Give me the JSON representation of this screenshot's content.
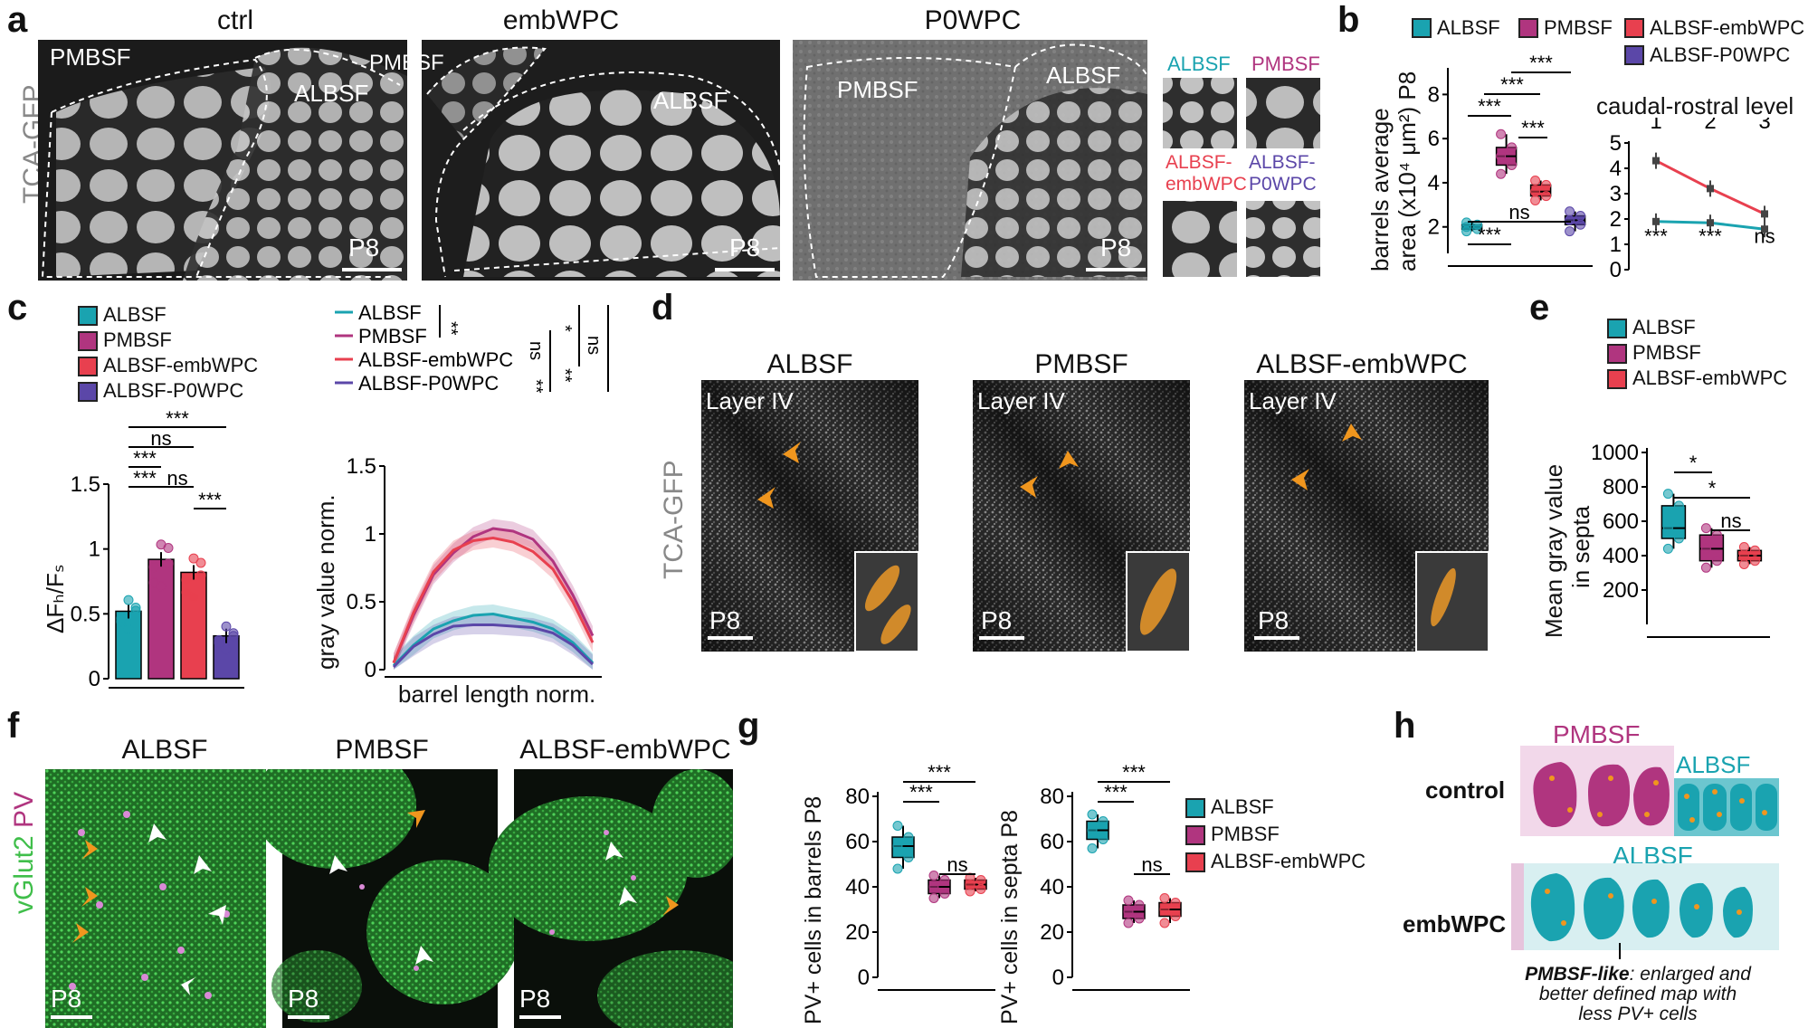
{
  "colors": {
    "albsf": "#1aa3b0",
    "pmbsf": "#b0357f",
    "embwpc": "#e8404f",
    "p0wpc": "#5b47a8",
    "green": "#3fbe4a",
    "orange": "#f0961e",
    "pink": "#e6c4dc"
  },
  "panel_letters": {
    "a": "a",
    "b": "b",
    "c": "c",
    "d": "d",
    "e": "e",
    "f": "f",
    "g": "g",
    "h": "h"
  },
  "panel_a": {
    "ylabel": "TCA-GFP",
    "titles": [
      "ctrl",
      "embWPC",
      "P0WPC"
    ],
    "region_pmbsf": "PMBSF",
    "region_albsf": "ALBSF",
    "age": "P8",
    "insets": [
      "ALBSF",
      "PMBSF",
      "ALBSF-\nembWPC",
      "ALBSF-\nP0WPC"
    ]
  },
  "panel_b": {
    "legend": [
      "ALBSF",
      "PMBSF",
      "ALBSF-embWPC",
      "ALBSF-P0WPC"
    ],
    "ylabel_line1": "barrels average",
    "ylabel_line2": "area (x10⁴ μm²) P8",
    "yticks": [
      "2",
      "4",
      "6",
      "8"
    ],
    "sig": [
      "***",
      "***",
      "***",
      "***",
      "ns",
      "***"
    ],
    "inset_title": "caudal-rostral level",
    "inset_levels": [
      "1",
      "2",
      "3"
    ],
    "inset_yticks": [
      "0",
      "1",
      "2",
      "3",
      "4",
      "5"
    ],
    "inset_sig": [
      "***",
      "***",
      "ns"
    ]
  },
  "panel_c": {
    "legend": [
      "ALBSF",
      "PMBSF",
      "ALBSF-embWPC",
      "ALBSF-P0WPC"
    ],
    "bar_ylabel": "ΔFₕ/Fₛ",
    "bar_yticks": [
      "0",
      "0.5",
      "1",
      "1.5"
    ],
    "bar_sig": [
      "***",
      "ns",
      "***",
      "***",
      "ns",
      "***"
    ],
    "line_legend": [
      "ALBSF",
      "PMBSF",
      "ALBSF-embWPC",
      "ALBSF-P0WPC"
    ],
    "line_sig": [
      "**",
      "ns",
      "**",
      "*",
      "**",
      "ns"
    ],
    "line_ylabel": "gray value norm.",
    "line_xlabel": "barrel length norm.",
    "line_yticks": [
      "0",
      "0.5",
      "1",
      "1.5"
    ]
  },
  "panel_d": {
    "ylabel": "TCA-GFP",
    "titles": [
      "ALBSF",
      "PMBSF",
      "ALBSF-embWPC"
    ],
    "layer": "Layer IV",
    "age": "P8"
  },
  "panel_e": {
    "legend": [
      "ALBSF",
      "PMBSF",
      "ALBSF-embWPC"
    ],
    "ylabel_line1": "Mean gray value",
    "ylabel_line2": "in septa",
    "yticks": [
      "200",
      "400",
      "600",
      "800",
      "1000"
    ],
    "sig": [
      "*",
      "*",
      "ns"
    ]
  },
  "panel_f": {
    "ylabel_a": "vGlut2",
    "ylabel_b": "PV",
    "titles": [
      "ALBSF",
      "PMBSF",
      "ALBSF-embWPC"
    ],
    "age": "P8"
  },
  "panel_g": {
    "ylabel_barrels": "PV+ cells in barrels P8",
    "ylabel_septa": "PV+ cells in septa P8",
    "yticks": [
      "0",
      "20",
      "40",
      "60",
      "80"
    ],
    "sig": [
      "***",
      "***",
      "ns"
    ],
    "legend": [
      "ALBSF",
      "PMBSF",
      "ALBSF-embWPC"
    ]
  },
  "panel_h": {
    "row1": "control",
    "row2": "embWPC",
    "pmbsf": "PMBSF",
    "albsf": "ALBSF",
    "albsf2": "ALBSF",
    "caption_bold": "PMBSF-like",
    "caption_rest": ": enlarged and",
    "caption_l2": "better defined map with",
    "caption_l3": "less PV+ cells"
  },
  "chart_data": [
    {
      "type": "box",
      "panel": "b",
      "categories": [
        "ALBSF",
        "PMBSF",
        "ALBSF-embWPC",
        "ALBSF-P0WPC"
      ],
      "median": [
        2.0,
        5.2,
        3.6,
        2.3
      ],
      "q1": [
        1.9,
        4.8,
        3.4,
        2.1
      ],
      "q3": [
        2.1,
        5.6,
        3.9,
        2.5
      ],
      "min": [
        1.8,
        4.4,
        3.2,
        1.8
      ],
      "max": [
        2.2,
        6.2,
        4.1,
        2.7
      ],
      "ylim": [
        0,
        10
      ]
    },
    {
      "type": "line",
      "panel": "b-inset",
      "x": [
        "1",
        "2",
        "3"
      ],
      "series": [
        {
          "name": "ALBSF",
          "values": [
            1.9,
            1.85,
            1.6
          ]
        },
        {
          "name": "ALBSF-embWPC",
          "values": [
            4.3,
            3.2,
            2.2
          ]
        }
      ],
      "ylim": [
        0,
        5
      ]
    },
    {
      "type": "bar",
      "panel": "c",
      "categories": [
        "ALBSF",
        "PMBSF",
        "ALBSF-embWPC",
        "ALBSF-P0WPC"
      ],
      "values": [
        0.52,
        0.92,
        0.82,
        0.33
      ],
      "ylim": [
        0,
        1.5
      ]
    },
    {
      "type": "line",
      "panel": "c-profile",
      "x": [
        0,
        0.1,
        0.2,
        0.3,
        0.4,
        0.5,
        0.6,
        0.7,
        0.8,
        0.9,
        1.0
      ],
      "series": [
        {
          "name": "ALBSF",
          "values": [
            0.03,
            0.18,
            0.3,
            0.36,
            0.4,
            0.41,
            0.38,
            0.35,
            0.3,
            0.2,
            0.05
          ]
        },
        {
          "name": "PMBSF",
          "values": [
            0.05,
            0.4,
            0.7,
            0.86,
            0.98,
            1.04,
            1.02,
            0.96,
            0.8,
            0.55,
            0.25
          ]
        },
        {
          "name": "ALBSF-embWPC",
          "values": [
            0.05,
            0.42,
            0.72,
            0.88,
            0.95,
            0.97,
            0.94,
            0.87,
            0.74,
            0.5,
            0.2
          ]
        },
        {
          "name": "ALBSF-P0WPC",
          "values": [
            0.02,
            0.17,
            0.26,
            0.32,
            0.33,
            0.33,
            0.32,
            0.31,
            0.27,
            0.18,
            0.04
          ]
        }
      ],
      "ylim": [
        0,
        1.5
      ]
    },
    {
      "type": "box",
      "panel": "e",
      "categories": [
        "ALBSF",
        "PMBSF",
        "ALBSF-embWPC"
      ],
      "median": [
        560,
        440,
        400
      ],
      "q1": [
        500,
        370,
        370
      ],
      "q3": [
        690,
        520,
        430
      ],
      "min": [
        440,
        330,
        350
      ],
      "max": [
        760,
        560,
        450
      ],
      "ylim": [
        0,
        1000
      ]
    },
    {
      "type": "box",
      "panel": "g-barrels",
      "categories": [
        "ALBSF",
        "PMBSF",
        "ALBSF-embWPC"
      ],
      "median": [
        58,
        40,
        41
      ],
      "q1": [
        53,
        37,
        39
      ],
      "q3": [
        62,
        43,
        43
      ],
      "min": [
        48,
        35,
        38
      ],
      "max": [
        67,
        45,
        44
      ],
      "ylim": [
        0,
        80
      ]
    },
    {
      "type": "box",
      "panel": "g-septa",
      "categories": [
        "ALBSF",
        "PMBSF",
        "ALBSF-embWPC"
      ],
      "median": [
        65,
        29,
        30
      ],
      "q1": [
        61,
        26,
        27
      ],
      "q3": [
        69,
        32,
        33
      ],
      "min": [
        57,
        24,
        24
      ],
      "max": [
        72,
        34,
        35
      ],
      "ylim": [
        0,
        80
      ]
    }
  ]
}
